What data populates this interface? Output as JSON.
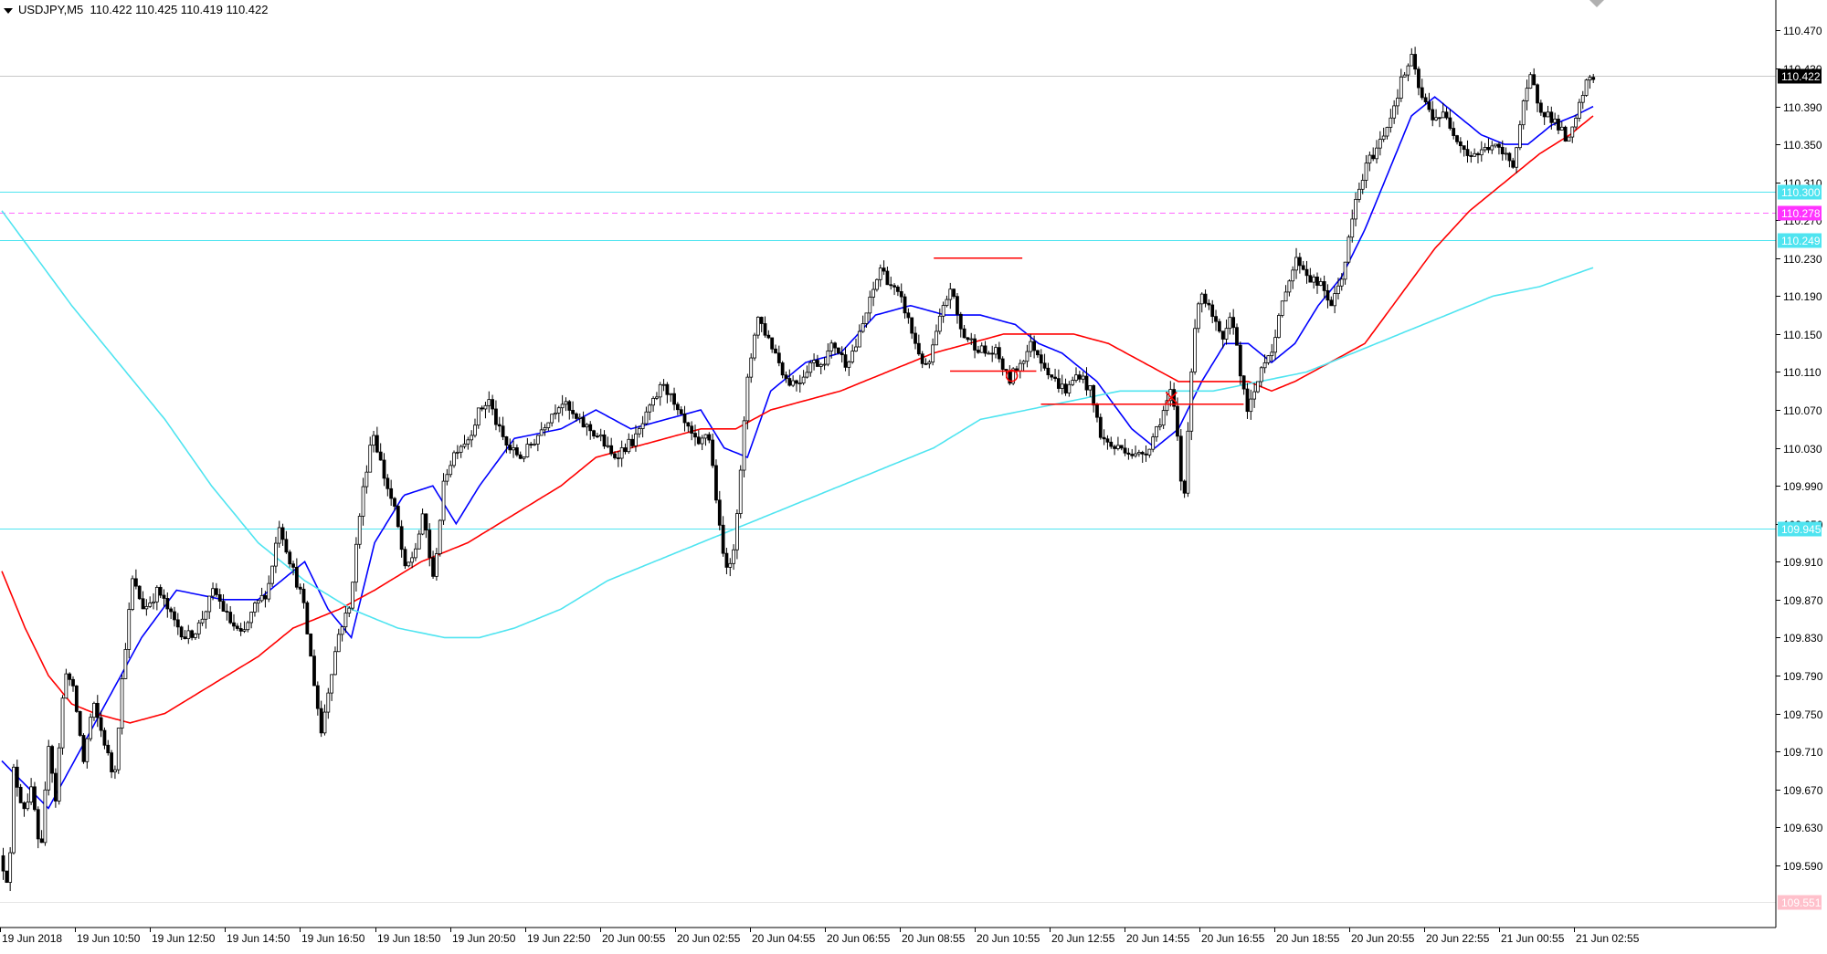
{
  "header": {
    "symbol": "USDJPY,M5",
    "quote": "110.422 110.425 110.419 110.422"
  },
  "chart_data": {
    "type": "candlestick",
    "symbol": "USDJPY",
    "timeframe": "M5",
    "ylim": [
      109.551,
      110.47
    ],
    "y_ticks": [
      "110.470",
      "110.430",
      "110.390",
      "110.350",
      "110.310",
      "110.270",
      "110.230",
      "110.190",
      "110.150",
      "110.110",
      "110.070",
      "110.030",
      "109.990",
      "109.950",
      "109.910",
      "109.870",
      "109.830",
      "109.790",
      "109.750",
      "109.710",
      "109.670",
      "109.630",
      "109.590"
    ],
    "x_ticks": [
      "19 Jun 2018",
      "19 Jun 10:50",
      "19 Jun 12:50",
      "19 Jun 14:50",
      "19 Jun 16:50",
      "19 Jun 18:50",
      "19 Jun 20:50",
      "19 Jun 22:50",
      "20 Jun 00:55",
      "20 Jun 02:55",
      "20 Jun 04:55",
      "20 Jun 06:55",
      "20 Jun 08:55",
      "20 Jun 10:55",
      "20 Jun 12:55",
      "20 Jun 14:55",
      "20 Jun 16:55",
      "20 Jun 18:55",
      "20 Jun 20:55",
      "20 Jun 22:55",
      "21 Jun 00:55",
      "21 Jun 02:55"
    ],
    "price_keypoints": [
      [
        0,
        109.6
      ],
      [
        8,
        109.57
      ],
      [
        12,
        109.69
      ],
      [
        20,
        109.65
      ],
      [
        28,
        109.67
      ],
      [
        35,
        109.59
      ],
      [
        42,
        109.72
      ],
      [
        48,
        109.66
      ],
      [
        56,
        109.8
      ],
      [
        64,
        109.77
      ],
      [
        72,
        109.7
      ],
      [
        80,
        109.76
      ],
      [
        90,
        109.72
      ],
      [
        98,
        109.68
      ],
      [
        106,
        109.8
      ],
      [
        114,
        109.89
      ],
      [
        124,
        109.86
      ],
      [
        136,
        109.88
      ],
      [
        148,
        109.85
      ],
      [
        160,
        109.83
      ],
      [
        170,
        109.84
      ],
      [
        184,
        109.88
      ],
      [
        196,
        109.85
      ],
      [
        208,
        109.83
      ],
      [
        218,
        109.86
      ],
      [
        230,
        109.88
      ],
      [
        240,
        109.95
      ],
      [
        252,
        109.9
      ],
      [
        260,
        109.87
      ],
      [
        268,
        109.8
      ],
      [
        276,
        109.73
      ],
      [
        284,
        109.79
      ],
      [
        292,
        109.84
      ],
      [
        300,
        109.86
      ],
      [
        310,
        109.97
      ],
      [
        320,
        110.05
      ],
      [
        330,
        110.0
      ],
      [
        340,
        109.96
      ],
      [
        348,
        109.9
      ],
      [
        356,
        109.92
      ],
      [
        364,
        109.96
      ],
      [
        372,
        109.89
      ],
      [
        382,
        110.0
      ],
      [
        392,
        110.03
      ],
      [
        402,
        110.04
      ],
      [
        412,
        110.07
      ],
      [
        420,
        110.08
      ],
      [
        428,
        110.05
      ],
      [
        436,
        110.03
      ],
      [
        448,
        110.02
      ],
      [
        460,
        110.04
      ],
      [
        470,
        110.06
      ],
      [
        482,
        110.08
      ],
      [
        494,
        110.06
      ],
      [
        506,
        110.05
      ],
      [
        516,
        110.04
      ],
      [
        526,
        110.02
      ],
      [
        536,
        110.03
      ],
      [
        546,
        110.04
      ],
      [
        558,
        110.07
      ],
      [
        570,
        110.1
      ],
      [
        580,
        110.07
      ],
      [
        590,
        110.05
      ],
      [
        600,
        110.03
      ],
      [
        608,
        110.05
      ],
      [
        614,
        109.99
      ],
      [
        620,
        109.92
      ],
      [
        628,
        109.9
      ],
      [
        634,
        109.98
      ],
      [
        642,
        110.1
      ],
      [
        650,
        110.17
      ],
      [
        658,
        110.15
      ],
      [
        666,
        110.13
      ],
      [
        676,
        110.1
      ],
      [
        686,
        110.1
      ],
      [
        696,
        110.12
      ],
      [
        706,
        110.12
      ],
      [
        716,
        110.14
      ],
      [
        726,
        110.12
      ],
      [
        736,
        110.14
      ],
      [
        746,
        110.18
      ],
      [
        756,
        110.22
      ],
      [
        766,
        110.2
      ],
      [
        776,
        110.18
      ],
      [
        786,
        110.14
      ],
      [
        796,
        110.11
      ],
      [
        806,
        110.16
      ],
      [
        816,
        110.2
      ],
      [
        826,
        110.15
      ],
      [
        836,
        110.14
      ],
      [
        846,
        110.13
      ],
      [
        856,
        110.13
      ],
      [
        866,
        110.1
      ],
      [
        876,
        110.12
      ],
      [
        886,
        110.14
      ],
      [
        896,
        110.12
      ],
      [
        906,
        110.1
      ],
      [
        916,
        110.09
      ],
      [
        926,
        110.11
      ],
      [
        936,
        110.09
      ],
      [
        946,
        110.04
      ],
      [
        956,
        110.03
      ],
      [
        966,
        110.03
      ],
      [
        976,
        110.02
      ],
      [
        986,
        110.03
      ],
      [
        996,
        110.06
      ],
      [
        1006,
        110.09
      ],
      [
        1012,
        110.03
      ],
      [
        1016,
        109.96
      ],
      [
        1022,
        110.1
      ],
      [
        1030,
        110.2
      ],
      [
        1040,
        110.17
      ],
      [
        1050,
        110.14
      ],
      [
        1058,
        110.17
      ],
      [
        1064,
        110.12
      ],
      [
        1070,
        110.07
      ],
      [
        1076,
        110.08
      ],
      [
        1084,
        110.12
      ],
      [
        1094,
        110.14
      ],
      [
        1104,
        110.2
      ],
      [
        1114,
        110.23
      ],
      [
        1124,
        110.21
      ],
      [
        1134,
        110.2
      ],
      [
        1144,
        110.18
      ],
      [
        1154,
        110.22
      ],
      [
        1164,
        110.29
      ],
      [
        1174,
        110.33
      ],
      [
        1184,
        110.35
      ],
      [
        1194,
        110.38
      ],
      [
        1204,
        110.42
      ],
      [
        1212,
        110.44
      ],
      [
        1220,
        110.4
      ],
      [
        1230,
        110.38
      ],
      [
        1240,
        110.38
      ],
      [
        1250,
        110.36
      ],
      [
        1260,
        110.34
      ],
      [
        1270,
        110.34
      ],
      [
        1280,
        110.35
      ],
      [
        1290,
        110.34
      ],
      [
        1300,
        110.33
      ],
      [
        1306,
        110.38
      ],
      [
        1314,
        110.42
      ],
      [
        1322,
        110.39
      ],
      [
        1330,
        110.38
      ],
      [
        1338,
        110.37
      ],
      [
        1346,
        110.35
      ],
      [
        1352,
        110.37
      ],
      [
        1358,
        110.4
      ],
      [
        1364,
        110.42
      ]
    ],
    "series": [
      {
        "type": "moving-average",
        "color": "#0000ff",
        "keypoints": [
          [
            0,
            109.7
          ],
          [
            40,
            109.65
          ],
          [
            80,
            109.74
          ],
          [
            120,
            109.83
          ],
          [
            150,
            109.88
          ],
          [
            190,
            109.87
          ],
          [
            220,
            109.87
          ],
          [
            260,
            109.91
          ],
          [
            280,
            109.86
          ],
          [
            300,
            109.83
          ],
          [
            320,
            109.93
          ],
          [
            345,
            109.98
          ],
          [
            370,
            109.99
          ],
          [
            390,
            109.95
          ],
          [
            410,
            109.99
          ],
          [
            440,
            110.04
          ],
          [
            480,
            110.05
          ],
          [
            510,
            110.07
          ],
          [
            540,
            110.05
          ],
          [
            570,
            110.06
          ],
          [
            600,
            110.07
          ],
          [
            620,
            110.03
          ],
          [
            640,
            110.02
          ],
          [
            660,
            110.09
          ],
          [
            690,
            110.12
          ],
          [
            720,
            110.13
          ],
          [
            750,
            110.17
          ],
          [
            780,
            110.18
          ],
          [
            810,
            110.17
          ],
          [
            840,
            110.17
          ],
          [
            870,
            110.16
          ],
          [
            890,
            110.14
          ],
          [
            910,
            110.13
          ],
          [
            940,
            110.1
          ],
          [
            970,
            110.05
          ],
          [
            990,
            110.03
          ],
          [
            1010,
            110.05
          ],
          [
            1030,
            110.1
          ],
          [
            1050,
            110.14
          ],
          [
            1070,
            110.14
          ],
          [
            1090,
            110.12
          ],
          [
            1110,
            110.14
          ],
          [
            1130,
            110.18
          ],
          [
            1150,
            110.21
          ],
          [
            1170,
            110.26
          ],
          [
            1190,
            110.32
          ],
          [
            1210,
            110.38
          ],
          [
            1230,
            110.4
          ],
          [
            1250,
            110.38
          ],
          [
            1270,
            110.36
          ],
          [
            1290,
            110.35
          ],
          [
            1310,
            110.35
          ],
          [
            1330,
            110.37
          ],
          [
            1350,
            110.38
          ],
          [
            1366,
            110.39
          ]
        ]
      },
      {
        "type": "moving-average",
        "color": "#ff0000",
        "keypoints": [
          [
            0,
            109.9
          ],
          [
            20,
            109.84
          ],
          [
            40,
            109.79
          ],
          [
            60,
            109.76
          ],
          [
            80,
            109.75
          ],
          [
            110,
            109.74
          ],
          [
            140,
            109.75
          ],
          [
            180,
            109.78
          ],
          [
            220,
            109.81
          ],
          [
            250,
            109.84
          ],
          [
            290,
            109.86
          ],
          [
            320,
            109.88
          ],
          [
            360,
            109.91
          ],
          [
            400,
            109.93
          ],
          [
            440,
            109.96
          ],
          [
            480,
            109.99
          ],
          [
            510,
            110.02
          ],
          [
            540,
            110.03
          ],
          [
            570,
            110.04
          ],
          [
            600,
            110.05
          ],
          [
            630,
            110.05
          ],
          [
            660,
            110.07
          ],
          [
            690,
            110.08
          ],
          [
            720,
            110.09
          ],
          [
            760,
            110.11
          ],
          [
            800,
            110.13
          ],
          [
            830,
            110.14
          ],
          [
            860,
            110.15
          ],
          [
            890,
            110.15
          ],
          [
            920,
            110.15
          ],
          [
            950,
            110.14
          ],
          [
            980,
            110.12
          ],
          [
            1010,
            110.1
          ],
          [
            1040,
            110.1
          ],
          [
            1070,
            110.1
          ],
          [
            1090,
            110.09
          ],
          [
            1110,
            110.1
          ],
          [
            1140,
            110.12
          ],
          [
            1170,
            110.14
          ],
          [
            1200,
            110.19
          ],
          [
            1230,
            110.24
          ],
          [
            1260,
            110.28
          ],
          [
            1290,
            110.31
          ],
          [
            1320,
            110.34
          ],
          [
            1346,
            110.36
          ],
          [
            1366,
            110.38
          ]
        ]
      },
      {
        "type": "moving-average",
        "color": "#4fe4f0",
        "keypoints": [
          [
            0,
            110.28
          ],
          [
            30,
            110.23
          ],
          [
            60,
            110.18
          ],
          [
            100,
            110.12
          ],
          [
            140,
            110.06
          ],
          [
            180,
            109.99
          ],
          [
            220,
            109.93
          ],
          [
            260,
            109.89
          ],
          [
            300,
            109.86
          ],
          [
            340,
            109.84
          ],
          [
            380,
            109.83
          ],
          [
            410,
            109.83
          ],
          [
            440,
            109.84
          ],
          [
            480,
            109.86
          ],
          [
            520,
            109.89
          ],
          [
            560,
            109.91
          ],
          [
            600,
            109.93
          ],
          [
            640,
            109.95
          ],
          [
            680,
            109.97
          ],
          [
            720,
            109.99
          ],
          [
            760,
            110.01
          ],
          [
            800,
            110.03
          ],
          [
            840,
            110.06
          ],
          [
            880,
            110.07
          ],
          [
            920,
            110.08
          ],
          [
            960,
            110.09
          ],
          [
            1000,
            110.09
          ],
          [
            1040,
            110.09
          ],
          [
            1080,
            110.1
          ],
          [
            1120,
            110.11
          ],
          [
            1160,
            110.13
          ],
          [
            1200,
            110.15
          ],
          [
            1240,
            110.17
          ],
          [
            1280,
            110.19
          ],
          [
            1320,
            110.2
          ],
          [
            1366,
            110.22
          ]
        ]
      }
    ],
    "horizontal_lines": [
      {
        "price": 110.422,
        "label": "110.422",
        "style": "solid",
        "color": "#c8c8c8",
        "label_bg": "#000000",
        "label_fg": "#ffffff"
      },
      {
        "price": 110.3,
        "label": "110.300",
        "style": "solid",
        "color": "#4fe4f0",
        "label_bg": "#4fe4f0",
        "label_fg": "#ffffff"
      },
      {
        "price": 110.278,
        "label": "110.278",
        "style": "dashed",
        "color": "#ff66ff",
        "label_bg": "#ff33ff",
        "label_fg": "#ffffff"
      },
      {
        "price": 110.249,
        "label": "110.249",
        "style": "solid",
        "color": "#4fe4f0",
        "label_bg": "#4fe4f0",
        "label_fg": "#ffffff"
      },
      {
        "price": 109.945,
        "label": "109.945",
        "style": "solid",
        "color": "#4fe4f0",
        "label_bg": "#4fe4f0",
        "label_fg": "#ffffff"
      },
      {
        "price": 109.551,
        "label": "109.551",
        "style": "solid",
        "color": "#e6e6e6",
        "label_bg": "#ffc0cb",
        "label_fg": "#ffffff"
      }
    ],
    "annotations": [
      {
        "type": "segment",
        "from": [
          800,
          110.23
        ],
        "to": [
          876,
          110.23
        ],
        "color": "#ff0000"
      },
      {
        "type": "segment",
        "from": [
          814,
          110.111
        ],
        "to": [
          888,
          110.111
        ],
        "color": "#ff0000"
      },
      {
        "type": "segment",
        "from": [
          892,
          110.076
        ],
        "to": [
          1066,
          110.076
        ],
        "color": "#ff0000"
      },
      {
        "type": "circle-marker",
        "at": [
          867,
          110.106
        ],
        "color": "#ff0000"
      },
      {
        "type": "cross-marker",
        "at": [
          1004,
          110.083
        ],
        "color": "#ff0000"
      }
    ],
    "grid": false,
    "legend": "none"
  }
}
